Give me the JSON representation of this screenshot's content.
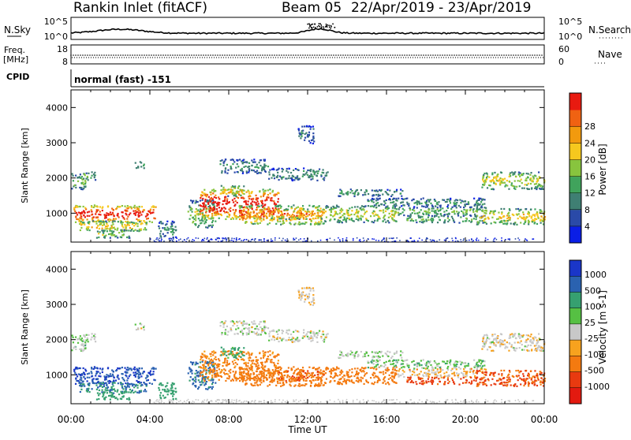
{
  "header": {
    "station": "Rankin Inlet (fitACF)",
    "beam": "Beam 05",
    "dates": "22/Apr/2019 - 23/Apr/2019"
  },
  "top_panels": {
    "nsky_label": "N.Sky",
    "nsky_ticks": [
      "10^5",
      "10^0"
    ],
    "nsearch_label": "N.Search",
    "nsearch_ticks": [
      "10^5",
      "10^0"
    ],
    "freq_label_line1": "Freq.",
    "freq_label_line2": "[MHz]",
    "freq_ticks": [
      "18",
      "8"
    ],
    "nave_label": "Nave",
    "nave_ticks": [
      "60",
      "0"
    ],
    "cpid_label": "CPID",
    "cpid_text": "normal (fast) -151"
  },
  "colors": {
    "power": [
      "#0a1ee6",
      "#2a4aa8",
      "#3f7f73",
      "#40a35c",
      "#88c43e",
      "#f6c81e",
      "#f29a0e",
      "#f06212",
      "#e81a10"
    ],
    "velocity": [
      "#1a36c8",
      "#2a62b0",
      "#36a070",
      "#56c043",
      "#c8c8c8",
      "#f7a21e",
      "#f47a10",
      "#e83a10",
      "#e31a10"
    ]
  },
  "chart_data": [
    {
      "type": "heatmap",
      "title": "Power",
      "xlabel": "",
      "ylabel": "Slant Range [km]",
      "x_ticks": [
        "00:00",
        "04:00",
        "08:00",
        "12:00",
        "16:00",
        "20:00",
        "00:00"
      ],
      "y_ticks": [
        "1000",
        "2000",
        "3000",
        "4000"
      ],
      "ylim": [
        180,
        4500
      ],
      "colorbar": {
        "label": "Power [dB]",
        "ticks": [
          "4",
          "8",
          "12",
          "16",
          "20",
          "24",
          "28"
        ]
      }
    },
    {
      "type": "heatmap",
      "title": "Velocity",
      "xlabel": "Time UT",
      "ylabel": "Slant Range [km]",
      "x_ticks": [
        "00:00",
        "04:00",
        "08:00",
        "12:00",
        "16:00",
        "20:00",
        "00:00"
      ],
      "y_ticks": [
        "1000",
        "2000",
        "3000",
        "4000"
      ],
      "ylim": [
        180,
        4500
      ],
      "colorbar": {
        "label": "Velocity [m s-1]",
        "ticks": [
          "1000",
          "500",
          "100",
          "25",
          "-25",
          "-100",
          "-500",
          "-1000"
        ]
      }
    }
  ]
}
